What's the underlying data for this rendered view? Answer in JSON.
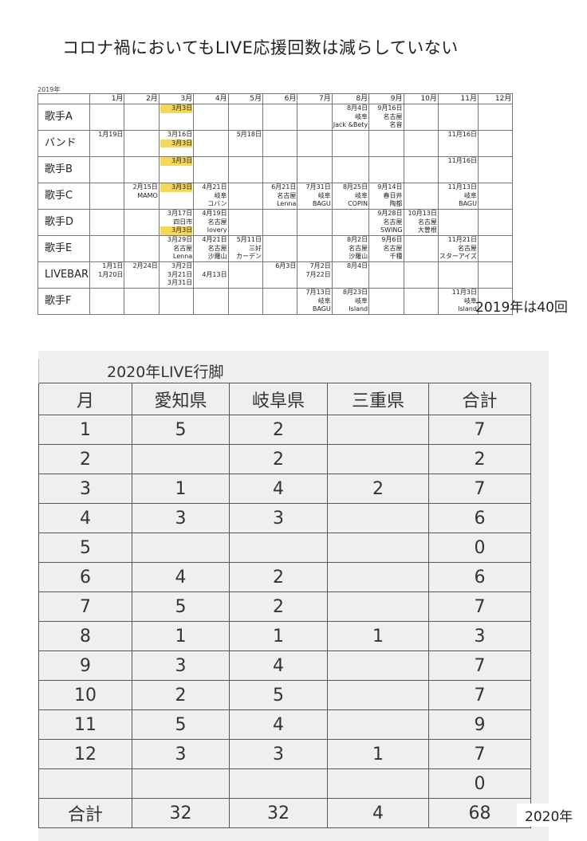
{
  "title": "コロナ禍においてもLIVE応援回数は減らしていない",
  "table2019": {
    "year_label": "2019年",
    "months": [
      "1月",
      "2月",
      "3月",
      "4月",
      "5月",
      "6月",
      "7月",
      "8月",
      "9月",
      "10月",
      "11月",
      "12月"
    ],
    "rows": [
      {
        "label": "歌手A",
        "cells": [
          [],
          [],
          [
            {
              "t": "3月3日",
              "hl": true
            }
          ],
          [],
          [],
          [],
          [],
          [
            "8月4日",
            "岐阜",
            "Jack &Bety"
          ],
          [
            "9月16日",
            "名古屋",
            "名音"
          ],
          [],
          [],
          []
        ]
      },
      {
        "label": "バンド",
        "cells": [
          [
            "1月19日"
          ],
          [],
          [
            "3月16日",
            {
              "t": "3月3日",
              "hl": true
            }
          ],
          [],
          [
            "5月18日"
          ],
          [],
          [],
          [],
          [],
          [],
          [
            "11月16日"
          ],
          []
        ]
      },
      {
        "label": "歌手B",
        "cells": [
          [],
          [],
          [
            {
              "t": "3月3日",
              "hl": true
            }
          ],
          [],
          [],
          [],
          [],
          [],
          [],
          [],
          [
            "11月16日"
          ],
          []
        ]
      },
      {
        "label": "歌手C",
        "cells": [
          [],
          [
            "2月15日",
            "MAMO"
          ],
          [
            {
              "t": "3月3日",
              "hl": true
            }
          ],
          [
            "4月21日",
            "岐阜",
            "コバン"
          ],
          [],
          [
            "6月21日",
            "名古屋",
            "Lenna"
          ],
          [
            "7月31日",
            "岐阜",
            "BAGU"
          ],
          [
            "8月25日",
            "岐阜",
            "COPIN"
          ],
          [
            "9月14日",
            "春日井",
            "陶都"
          ],
          [],
          [
            "11月13日",
            "岐阜",
            "BAGU"
          ],
          []
        ]
      },
      {
        "label": "歌手D",
        "cells": [
          [],
          [],
          [
            "3月17日",
            "四日市",
            {
              "t": "3月3日",
              "hl": true
            }
          ],
          [
            "4月19日",
            "名古屋",
            "lovery"
          ],
          [],
          [],
          [],
          [],
          [
            "9月28日",
            "名古屋",
            "SWING"
          ],
          [
            "10月13日",
            "名古屋",
            "大曽根"
          ],
          [],
          []
        ]
      },
      {
        "label": "歌手E",
        "cells": [
          [],
          [],
          [
            "3月29日",
            "名古屋",
            "Lenna"
          ],
          [
            "4月21日",
            "名古屋",
            "沙羅山"
          ],
          [
            "5月11日",
            "三好",
            "カーデン"
          ],
          [],
          [],
          [
            "8月2日",
            "名古屋",
            "沙羅山"
          ],
          [
            "9月6日",
            "名古屋",
            "千種"
          ],
          [],
          [
            "11月21日",
            "名古屋",
            "スターアイズ"
          ],
          []
        ]
      },
      {
        "label": "LIVEBAR",
        "cells": [
          [
            "1月1日",
            "1月20日"
          ],
          [
            "2月24日"
          ],
          [
            "3月2日",
            "3月21日",
            "3月31日"
          ],
          [
            "",
            "4月13日"
          ],
          [],
          [
            "6月3日"
          ],
          [
            "7月2日",
            "7月22日"
          ],
          [
            "8月4日"
          ],
          [],
          [],
          [],
          []
        ]
      },
      {
        "label": "歌手F",
        "cells": [
          [],
          [],
          [],
          [],
          [],
          [],
          [
            "7月13日",
            "岐阜",
            "BAGU"
          ],
          [
            "8月23日",
            "岐阜",
            "Island"
          ],
          [],
          [],
          [
            "11月3日",
            "岐阜",
            "Island"
          ],
          []
        ]
      }
    ],
    "note": "2019年は40回"
  },
  "table2020": {
    "title": "2020年LIVE行脚",
    "headers": [
      "月",
      "愛知県",
      "岐阜県",
      "三重県",
      "合計"
    ],
    "rows": [
      [
        "1",
        "5",
        "2",
        "",
        "7"
      ],
      [
        "2",
        "",
        "2",
        "",
        "2"
      ],
      [
        "3",
        "1",
        "4",
        "2",
        "7"
      ],
      [
        "4",
        "3",
        "3",
        "",
        "6"
      ],
      [
        "5",
        "",
        "",
        "",
        "0"
      ],
      [
        "6",
        "4",
        "2",
        "",
        "6"
      ],
      [
        "7",
        "5",
        "2",
        "",
        "7"
      ],
      [
        "8",
        "1",
        "1",
        "1",
        "3"
      ],
      [
        "9",
        "3",
        "4",
        "",
        "7"
      ],
      [
        "10",
        "2",
        "5",
        "",
        "7"
      ],
      [
        "11",
        "5",
        "4",
        "",
        "9"
      ],
      [
        "12",
        "3",
        "3",
        "1",
        "7"
      ],
      [
        "",
        "",
        "",
        "",
        "0"
      ],
      [
        "合計",
        "32",
        "32",
        "4",
        "68"
      ]
    ],
    "note": "2020年"
  },
  "colors": {
    "highlight": "#f5d75a"
  }
}
